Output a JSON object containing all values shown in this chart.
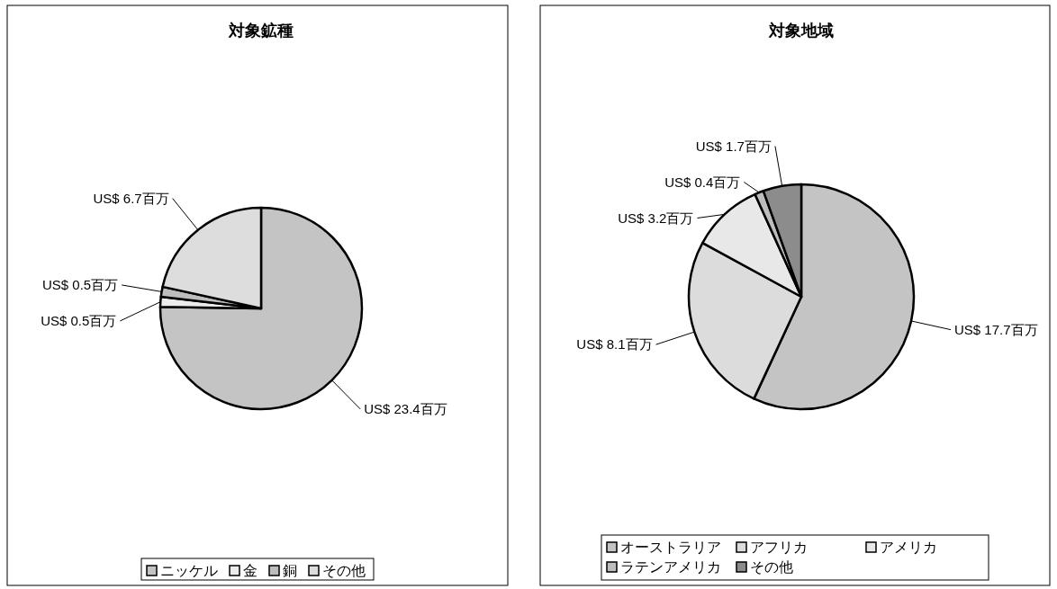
{
  "chart_data": [
    {
      "type": "pie",
      "title": "対象鉱種",
      "categories": [
        "ニッケル",
        "金",
        "銅",
        "その他"
      ],
      "values": [
        23.4,
        0.5,
        0.5,
        6.7
      ],
      "colors": [
        "#c4c4c4",
        "#ececec",
        "#bdbdbd",
        "#dddddd"
      ],
      "value_labels": [
        "US$ 23.4百万",
        "US$ 0.5百万",
        "US$ 0.5百万",
        "US$ 6.7百万"
      ],
      "legend": "bottom"
    },
    {
      "type": "pie",
      "title": "対象地域",
      "categories": [
        "オーストラリア",
        "アフリカ",
        "アメリカ",
        "ラテンアメリカ",
        "その他"
      ],
      "values": [
        17.7,
        8.1,
        3.2,
        0.4,
        1.7
      ],
      "colors": [
        "#c4c4c4",
        "#dcdcdc",
        "#e8e8e8",
        "#bdbdbd",
        "#8c8c8c"
      ],
      "value_labels": [
        "US$ 17.7百万",
        "US$ 8.1百万",
        "US$ 3.2百万",
        "US$ 0.4百万",
        "US$ 1.7百万"
      ],
      "legend": "bottom"
    }
  ]
}
